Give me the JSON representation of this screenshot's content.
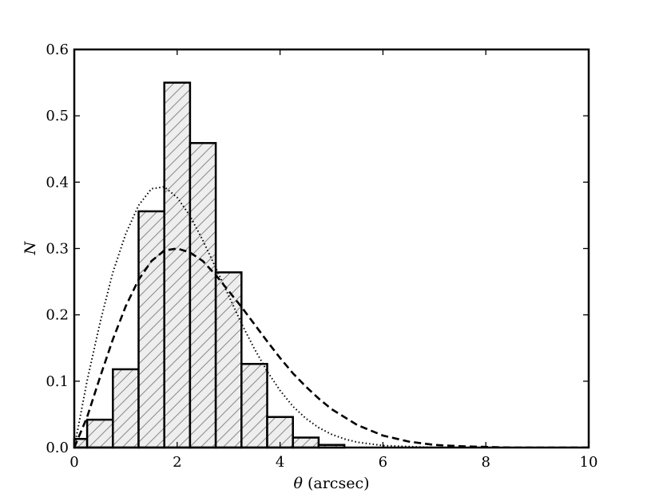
{
  "chart_data": {
    "type": "bar",
    "title": "",
    "xlabel_symbol": "θ",
    "xlabel_unit": "(arcsec)",
    "ylabel": "N",
    "xlim": [
      0,
      10
    ],
    "ylim": [
      0,
      0.6
    ],
    "xticks": [
      "0",
      "2",
      "4",
      "6",
      "8",
      "10"
    ],
    "yticks": [
      "0.0",
      "0.1",
      "0.2",
      "0.3",
      "0.4",
      "0.5",
      "0.6"
    ],
    "grid": false,
    "bar_fill": "hatched",
    "histogram": {
      "bin_edges": [
        0.0,
        0.25,
        0.75,
        1.25,
        1.75,
        2.25,
        2.75,
        3.25,
        3.75,
        4.25,
        4.75,
        5.25
      ],
      "bars": [
        {
          "x0": 0.0,
          "x1": 0.25,
          "value": 0.013
        },
        {
          "x0": 0.25,
          "x1": 0.75,
          "value": 0.042
        },
        {
          "x0": 0.75,
          "x1": 1.25,
          "value": 0.118
        },
        {
          "x0": 1.25,
          "x1": 1.75,
          "value": 0.356
        },
        {
          "x0": 1.75,
          "x1": 2.25,
          "value": 0.55
        },
        {
          "x0": 2.25,
          "x1": 2.75,
          "value": 0.459
        },
        {
          "x0": 2.75,
          "x1": 3.25,
          "value": 0.264
        },
        {
          "x0": 3.25,
          "x1": 3.75,
          "value": 0.126
        },
        {
          "x0": 3.75,
          "x1": 4.25,
          "value": 0.046
        },
        {
          "x0": 4.25,
          "x1": 4.75,
          "value": 0.015
        },
        {
          "x0": 4.75,
          "x1": 5.25,
          "value": 0.004
        }
      ]
    },
    "series": [
      {
        "style": "dotted",
        "x": [
          0.0,
          0.25,
          0.5,
          0.75,
          1.0,
          1.25,
          1.5,
          1.75,
          2.0,
          2.25,
          2.5,
          2.75,
          3.0,
          3.25,
          3.5,
          3.75,
          4.0,
          4.25,
          4.5,
          4.75,
          5.0,
          5.25,
          5.5,
          6.0,
          7.0,
          8.0,
          9.0,
          10.0
        ],
        "values": [
          0.0,
          0.101,
          0.188,
          0.264,
          0.322,
          0.365,
          0.39,
          0.393,
          0.377,
          0.349,
          0.312,
          0.271,
          0.229,
          0.187,
          0.149,
          0.115,
          0.086,
          0.062,
          0.044,
          0.03,
          0.02,
          0.013,
          0.008,
          0.003,
          0.0,
          0.0,
          0.0,
          0.0
        ]
      },
      {
        "style": "dashed",
        "x": [
          0.0,
          0.25,
          0.5,
          0.75,
          1.0,
          1.25,
          1.5,
          1.75,
          2.0,
          2.25,
          2.5,
          2.75,
          3.0,
          3.25,
          3.5,
          3.75,
          4.0,
          4.25,
          4.5,
          4.75,
          5.0,
          5.5,
          6.0,
          6.5,
          7.0,
          7.5,
          8.0,
          8.5,
          9.0,
          10.0
        ],
        "values": [
          0.0,
          0.046,
          0.106,
          0.163,
          0.213,
          0.253,
          0.281,
          0.297,
          0.3,
          0.294,
          0.281,
          0.26,
          0.236,
          0.212,
          0.186,
          0.16,
          0.135,
          0.112,
          0.092,
          0.074,
          0.058,
          0.034,
          0.018,
          0.009,
          0.004,
          0.002,
          0.001,
          0.0,
          0.0,
          0.0
        ]
      }
    ]
  }
}
